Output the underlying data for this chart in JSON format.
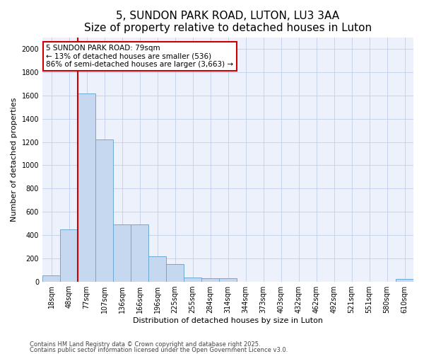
{
  "title": "5, SUNDON PARK ROAD, LUTON, LU3 3AA",
  "subtitle": "Size of property relative to detached houses in Luton",
  "xlabel": "Distribution of detached houses by size in Luton",
  "ylabel": "Number of detached properties",
  "categories": [
    "18sqm",
    "48sqm",
    "77sqm",
    "107sqm",
    "136sqm",
    "166sqm",
    "196sqm",
    "225sqm",
    "255sqm",
    "284sqm",
    "314sqm",
    "344sqm",
    "373sqm",
    "403sqm",
    "432sqm",
    "462sqm",
    "492sqm",
    "521sqm",
    "551sqm",
    "580sqm",
    "610sqm"
  ],
  "values": [
    50,
    450,
    1620,
    1220,
    490,
    490,
    215,
    150,
    35,
    30,
    30,
    0,
    0,
    0,
    0,
    0,
    0,
    0,
    0,
    0,
    20
  ],
  "bar_color": "#c5d8f0",
  "bar_edge_color": "#6aaad4",
  "vline_x": 2,
  "vline_color": "#cc0000",
  "annotation_text": "5 SUNDON PARK ROAD: 79sqm\n← 13% of detached houses are smaller (536)\n86% of semi-detached houses are larger (3,663) →",
  "annotation_box_color": "#ffffff",
  "annotation_box_edge": "#cc0000",
  "ylim": [
    0,
    2100
  ],
  "yticks": [
    0,
    200,
    400,
    600,
    800,
    1000,
    1200,
    1400,
    1600,
    1800,
    2000
  ],
  "footer1": "Contains HM Land Registry data © Crown copyright and database right 2025.",
  "footer2": "Contains public sector information licensed under the Open Government Licence v3.0.",
  "background_color": "#edf1fb",
  "title_fontsize": 11,
  "subtitle_fontsize": 9.5,
  "tick_fontsize": 7,
  "label_fontsize": 8,
  "footer_fontsize": 6
}
